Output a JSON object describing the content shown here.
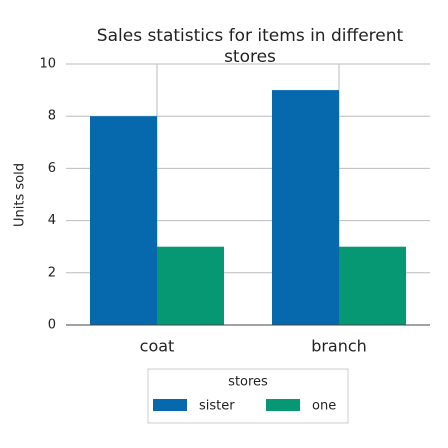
{
  "chart_data": {
    "type": "bar",
    "title": "Sales statistics for items in different stores",
    "categories": [
      "coat",
      "branch"
    ],
    "series": [
      {
        "name": "sister",
        "color": "#0769ad",
        "values": [
          8,
          9
        ]
      },
      {
        "name": "one",
        "color": "#059873",
        "values": [
          3,
          3
        ]
      }
    ],
    "ylabel": "Units sold",
    "legend_title": "stores",
    "ylim": [
      0,
      10
    ],
    "yticks": [
      0,
      2,
      4,
      6,
      8,
      10
    ],
    "grid": true,
    "legend_position": "bottom"
  }
}
